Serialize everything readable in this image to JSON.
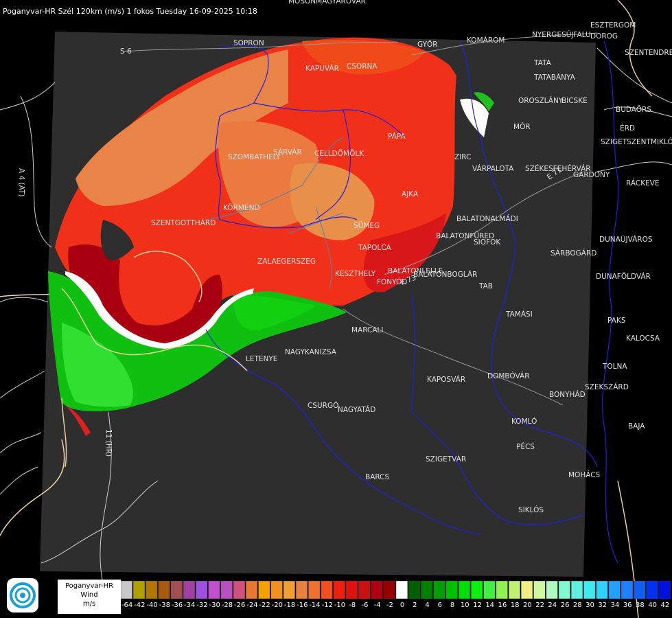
{
  "title": "Poganyvar-HR Szél 120km (m/s) 1 fokos Tuesday 16-09-2025 10:18",
  "legend": {
    "station": "Poganyvar-HR",
    "quantity": "Wind",
    "unit": "m/s",
    "scale": [
      {
        "value": "-64",
        "color": "#c8c8c8"
      },
      {
        "value": "-42",
        "color": "#b0a000"
      },
      {
        "value": "-40",
        "color": "#b07800"
      },
      {
        "value": "-38",
        "color": "#a85a10"
      },
      {
        "value": "-36",
        "color": "#a05050"
      },
      {
        "value": "-34",
        "color": "#a040a0"
      },
      {
        "value": "-32",
        "color": "#a050e0"
      },
      {
        "value": "-30",
        "color": "#c050d0"
      },
      {
        "value": "-28",
        "color": "#b850c0"
      },
      {
        "value": "-26",
        "color": "#d05080"
      },
      {
        "value": "-24",
        "color": "#e87830"
      },
      {
        "value": "-22",
        "color": "#f0a000"
      },
      {
        "value": "-20",
        "color": "#f09020"
      },
      {
        "value": "-18",
        "color": "#f0a030"
      },
      {
        "value": "-16",
        "color": "#e88040"
      },
      {
        "value": "-14",
        "color": "#f07030"
      },
      {
        "value": "-12",
        "color": "#f05020"
      },
      {
        "value": "-10",
        "color": "#f02010"
      },
      {
        "value": "-8",
        "color": "#e01010"
      },
      {
        "value": "-6",
        "color": "#c81010"
      },
      {
        "value": "-4",
        "color": "#b00010"
      },
      {
        "value": "-2",
        "color": "#980000"
      },
      {
        "value": "0",
        "color": "#ffffff"
      },
      {
        "value": "2",
        "color": "#006000"
      },
      {
        "value": "4",
        "color": "#008000"
      },
      {
        "value": "6",
        "color": "#00a000"
      },
      {
        "value": "8",
        "color": "#00c000"
      },
      {
        "value": "10",
        "color": "#00e000"
      },
      {
        "value": "12",
        "color": "#10f010"
      },
      {
        "value": "14",
        "color": "#40f040"
      },
      {
        "value": "16",
        "color": "#90f050"
      },
      {
        "value": "18",
        "color": "#c0f070"
      },
      {
        "value": "20",
        "color": "#f0f080"
      },
      {
        "value": "22",
        "color": "#d0f8a0"
      },
      {
        "value": "24",
        "color": "#b0f8c0"
      },
      {
        "value": "26",
        "color": "#80f8d0"
      },
      {
        "value": "28",
        "color": "#60f0e0"
      },
      {
        "value": "30",
        "color": "#40e8f0"
      },
      {
        "value": "32",
        "color": "#30d0ff"
      },
      {
        "value": "34",
        "color": "#20a0ff"
      },
      {
        "value": "36",
        "color": "#2080ff"
      },
      {
        "value": "38",
        "color": "#1060f0"
      },
      {
        "value": "40",
        "color": "#0030f0"
      },
      {
        "value": "42",
        "color": "#0010e0"
      }
    ]
  },
  "places": [
    {
      "name": "MOSONMAGYARÓVÁR"
    },
    {
      "name": "ESZTERGOM"
    },
    {
      "name": "NYERGESÚJFALU"
    },
    {
      "name": "DOROG"
    },
    {
      "name": "SZENTENDRE"
    },
    {
      "name": "S 6"
    },
    {
      "name": "SOPRON"
    },
    {
      "name": "GYŐR"
    },
    {
      "name": "KOMÁROM"
    },
    {
      "name": "TATA"
    },
    {
      "name": "TATABÁNYA"
    },
    {
      "name": "KAPUVÁR"
    },
    {
      "name": "CSORNA"
    },
    {
      "name": "OROSZLÁNY"
    },
    {
      "name": "BICSKE"
    },
    {
      "name": "BUDAÖRS"
    },
    {
      "name": "PÁPA"
    },
    {
      "name": "MÓR"
    },
    {
      "name": "ÉRD"
    },
    {
      "name": "SZIGETSZENTMIKLÓS"
    },
    {
      "name": "CELLDÖMÖLK"
    },
    {
      "name": "SÁRVÁR"
    },
    {
      "name": "SZOMBATHELY"
    },
    {
      "name": "ZIRC"
    },
    {
      "name": "VÁRPALOTA"
    },
    {
      "name": "SZÉKESFEHÉRVÁR"
    },
    {
      "name": "GÁRDONY"
    },
    {
      "name": "RÁCKEVE"
    },
    {
      "name": "KÖRMEND"
    },
    {
      "name": "AJKA"
    },
    {
      "name": "SZENTGOTTHÁRD"
    },
    {
      "name": "BALATONALMÁDI"
    },
    {
      "name": "SÜMEG"
    },
    {
      "name": "BALATONFÜRED"
    },
    {
      "name": "SIÓFOK"
    },
    {
      "name": "DUNAÚJVÁROS"
    },
    {
      "name": "ZALAEGERSZEG"
    },
    {
      "name": "TAPOLCA"
    },
    {
      "name": "SÁRBOGÁRD"
    },
    {
      "name": "KESZTHELY"
    },
    {
      "name": "BALATONLELLE"
    },
    {
      "name": "FONYÓD"
    },
    {
      "name": "BALATONBOGLÁR"
    },
    {
      "name": "DUNAFÖLDVÁR"
    },
    {
      "name": "TAB"
    },
    {
      "name": "MARCALI"
    },
    {
      "name": "TAMÁSI"
    },
    {
      "name": "PAKS"
    },
    {
      "name": "KALOCSA"
    },
    {
      "name": "LETENYE"
    },
    {
      "name": "NAGYKANIZSA"
    },
    {
      "name": "KAPOSVÁR"
    },
    {
      "name": "DOMBÓVÁR"
    },
    {
      "name": "TOLNA"
    },
    {
      "name": "SZEKSZÁRD"
    },
    {
      "name": "BONYHÁD"
    },
    {
      "name": "CSURGÓ"
    },
    {
      "name": "NAGYATÁD"
    },
    {
      "name": "KOMLÓ"
    },
    {
      "name": "BAJA"
    },
    {
      "name": "PÉCS"
    },
    {
      "name": "SZIGETVÁR"
    },
    {
      "name": "MOHÁCS"
    },
    {
      "name": "BARCS"
    },
    {
      "name": "SIKLÓS"
    },
    {
      "name": "A 4 (AT)"
    },
    {
      "name": "11 (HR)"
    },
    {
      "name": "E 71"
    },
    {
      "name": "E 73"
    }
  ]
}
